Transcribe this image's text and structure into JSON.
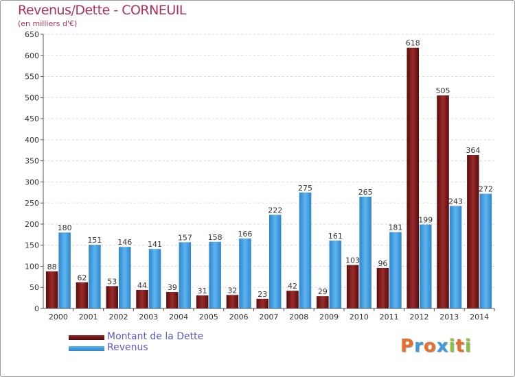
{
  "title": "Revenus/Dette - CORNEUIL",
  "subtitle": "(en milliers d'€)",
  "colors": {
    "debt": "#7a1a1a",
    "revenue": "#3d9be0",
    "axis": "#555555",
    "title": "#b0305a",
    "legend_text": "#5a5ad8"
  },
  "legend": {
    "debt_label": "Montant de la Dette",
    "revenue_label": "Revenus"
  },
  "logo": {
    "letters": [
      "P",
      "r",
      "o",
      "x",
      "i",
      "t",
      "i"
    ],
    "colors": [
      "#e8702a",
      "#3d9be0",
      "#e8702a",
      "#3d9be0",
      "#8ac43f",
      "#e8702a",
      "#8ac43f"
    ]
  },
  "chart_data": {
    "type": "bar",
    "title": "Revenus/Dette - CORNEUIL",
    "ylabel": "(en milliers d'€)",
    "xlabel": "",
    "ylim": [
      0,
      650
    ],
    "yticks": [
      0,
      50,
      100,
      150,
      200,
      250,
      300,
      350,
      400,
      450,
      500,
      550,
      600,
      650
    ],
    "grid": true,
    "legend_position": "bottom-left",
    "categories": [
      "2000",
      "2001",
      "2002",
      "2003",
      "2004",
      "2005",
      "2006",
      "2007",
      "2008",
      "2009",
      "2010",
      "2011",
      "2012",
      "2013",
      "2014"
    ],
    "series": [
      {
        "name": "Montant de la Dette",
        "values": [
          88,
          62,
          53,
          44,
          39,
          31,
          32,
          23,
          42,
          29,
          103,
          96,
          618,
          505,
          364
        ]
      },
      {
        "name": "Revenus",
        "values": [
          180,
          151,
          146,
          141,
          157,
          158,
          166,
          222,
          275,
          161,
          265,
          181,
          199,
          243,
          272
        ]
      }
    ]
  }
}
